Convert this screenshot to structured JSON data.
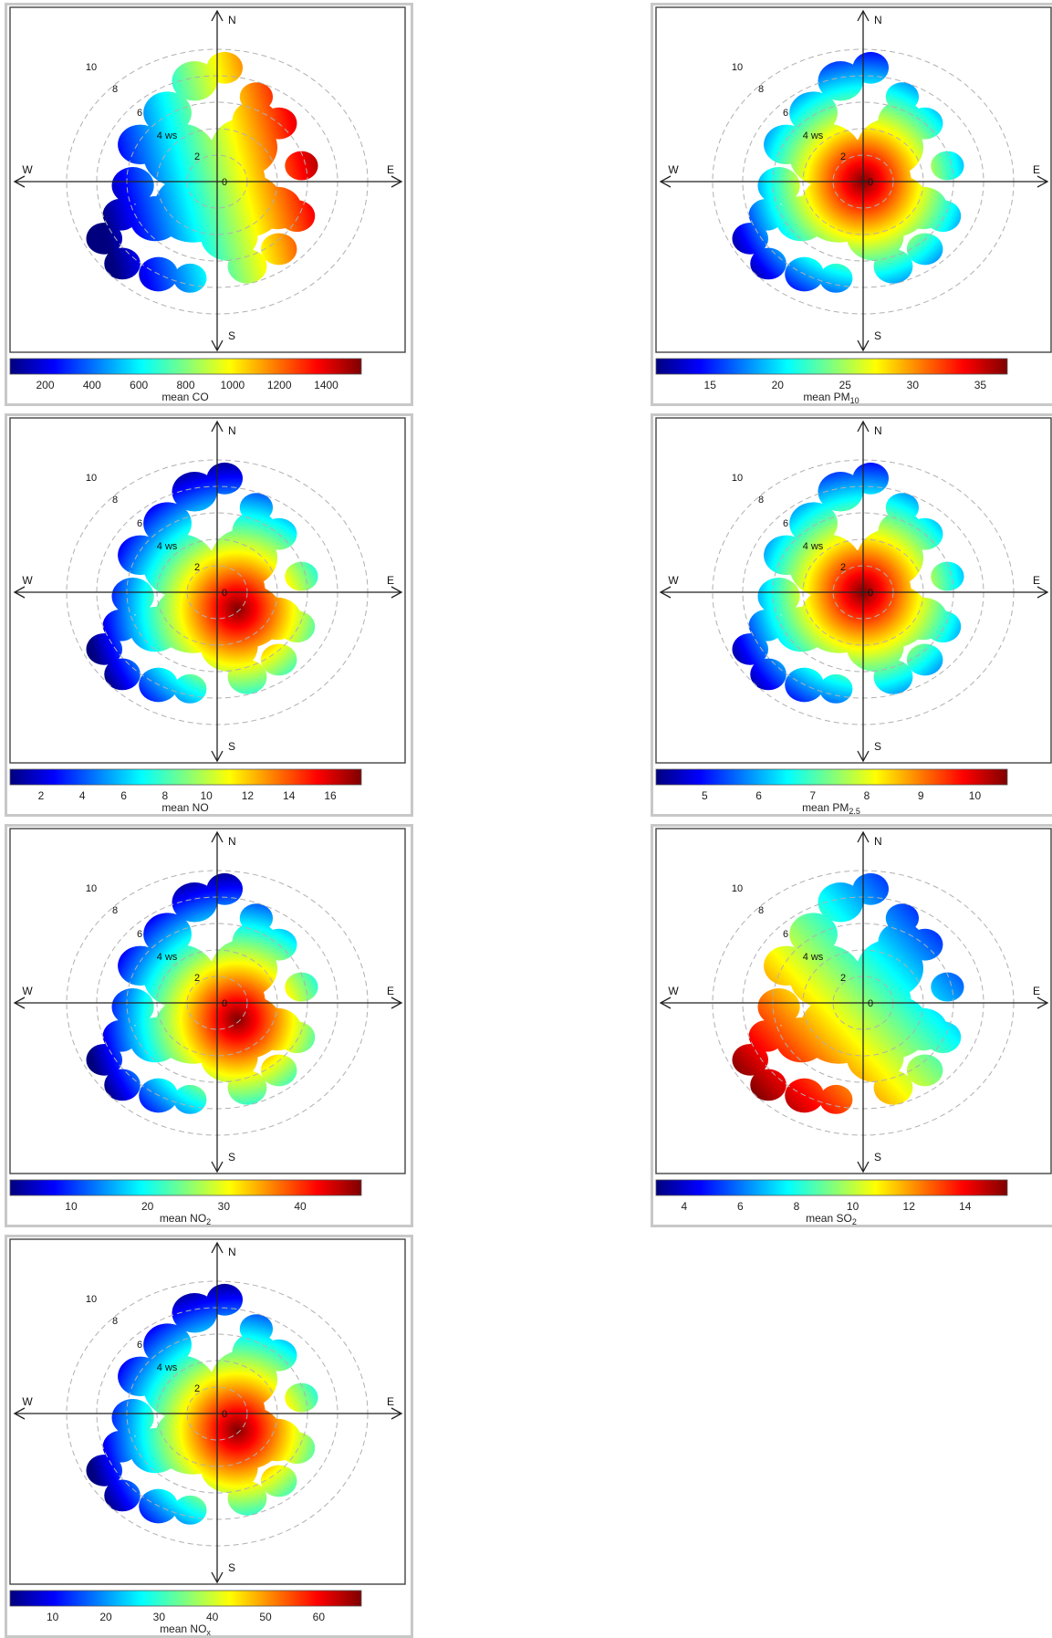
{
  "scale": {
    "directions": [
      "N",
      "E",
      "S",
      "W"
    ],
    "radial_ticks": [
      "0",
      "2",
      "4 ws",
      "6",
      "8",
      "10"
    ]
  },
  "colorscale": [
    "#00007f",
    "#0000ff",
    "#007fff",
    "#00ffff",
    "#7fff7f",
    "#ffff00",
    "#ff7f00",
    "#ff0000",
    "#7f0000"
  ],
  "chart_data": [
    {
      "type": "heatmap",
      "polar": true,
      "pollutant": "CO",
      "colorbar": {
        "label": "mean CO",
        "label_base": "mean CO",
        "label_sub": "",
        "ticks": [
          "200",
          "400",
          "600",
          "800",
          "1000",
          "1200",
          "1400"
        ],
        "range": [
          50,
          1550
        ]
      },
      "hot_direction": "north-east",
      "peak_value": 1500,
      "low_value": 100
    },
    {
      "type": "heatmap",
      "polar": true,
      "pollutant": "PM10",
      "colorbar": {
        "label": "mean PM10",
        "label_base": "mean PM",
        "label_sub": "10",
        "ticks": [
          "15",
          "20",
          "25",
          "30",
          "35"
        ],
        "range": [
          11,
          37
        ]
      },
      "hot_direction": "center",
      "peak_value": 37,
      "low_value": 11
    },
    {
      "type": "heatmap",
      "polar": true,
      "pollutant": "NO",
      "colorbar": {
        "label": "mean NO",
        "label_base": "mean NO",
        "label_sub": "",
        "ticks": [
          "2",
          "4",
          "6",
          "8",
          "10",
          "12",
          "14",
          "16"
        ],
        "range": [
          0.5,
          17.5
        ]
      },
      "hot_direction": "center-south-east",
      "peak_value": 17,
      "low_value": 1
    },
    {
      "type": "heatmap",
      "polar": true,
      "pollutant": "PM2.5",
      "colorbar": {
        "label": "mean PM2.5",
        "label_base": "mean PM",
        "label_sub": "2.5",
        "ticks": [
          "5",
          "6",
          "7",
          "8",
          "9",
          "10"
        ],
        "range": [
          4.1,
          10.6
        ]
      },
      "hot_direction": "center",
      "peak_value": 10.5,
      "low_value": 4.2
    },
    {
      "type": "heatmap",
      "polar": true,
      "pollutant": "NO2",
      "colorbar": {
        "label": "mean NO2",
        "label_base": "mean NO",
        "label_sub": "2",
        "ticks": [
          "10",
          "20",
          "30",
          "40"
        ],
        "range": [
          2,
          48
        ]
      },
      "hot_direction": "center-south-east",
      "peak_value": 48,
      "low_value": 3
    },
    {
      "type": "heatmap",
      "polar": true,
      "pollutant": "SO2",
      "colorbar": {
        "label": "mean SO2",
        "label_base": "mean SO",
        "label_sub": "2",
        "ticks": [
          "4",
          "6",
          "8",
          "10",
          "12",
          "14"
        ],
        "range": [
          3,
          15.5
        ]
      },
      "hot_direction": "south-west",
      "peak_value": 15,
      "low_value": 3.5
    },
    {
      "type": "heatmap",
      "polar": true,
      "pollutant": "NOx",
      "colorbar": {
        "label": "mean NOx",
        "label_base": "mean NO",
        "label_sub": "x",
        "ticks": [
          "10",
          "20",
          "30",
          "40",
          "50",
          "60"
        ],
        "range": [
          2,
          68
        ]
      },
      "hot_direction": "center-south-east",
      "peak_value": 67,
      "low_value": 3
    }
  ]
}
